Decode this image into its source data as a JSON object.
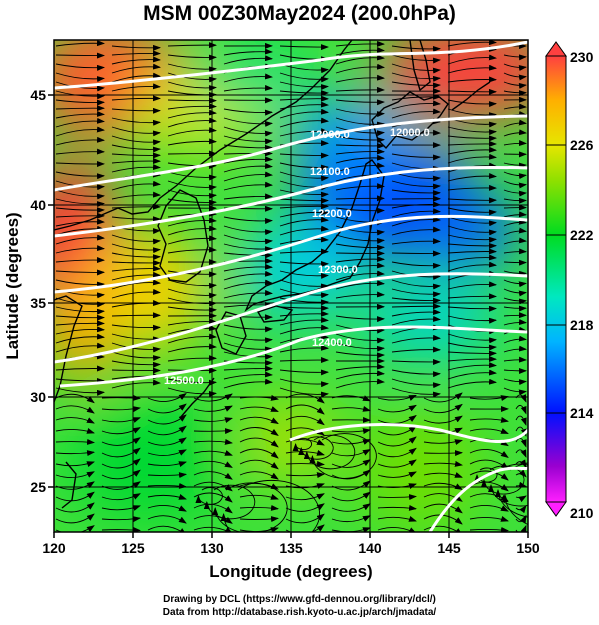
{
  "title": "MSM 00Z30May2024 (200.0hPa)",
  "axes": {
    "xlabel": "Longitude (degrees)",
    "ylabel": "Latitude  (degrees)",
    "xticks": [
      "120",
      "125",
      "130",
      "135",
      "140",
      "145",
      "150"
    ],
    "yticks": [
      "25",
      "30",
      "35",
      "40",
      "45"
    ]
  },
  "map": {
    "xlim": [
      120,
      150
    ],
    "ylim": [
      22.4,
      47.6
    ],
    "shaded_variable": "temperature",
    "contour_labels": [
      {
        "text": "12000.0",
        "lon": 140.5,
        "lat": 45.5
      },
      {
        "text": "12000.0",
        "lon": 136.5,
        "lat": 43.3
      },
      {
        "text": "12100.0",
        "lon": 136.8,
        "lat": 41.5
      },
      {
        "text": "12200.0",
        "lon": 137.0,
        "lat": 39.1
      },
      {
        "text": "12300.0",
        "lon": 137.6,
        "lat": 36.6
      },
      {
        "text": "12400.0",
        "lon": 135.0,
        "lat": 32.2
      },
      {
        "text": "12500.0",
        "lon": 127.6,
        "lat": 30.6
      }
    ]
  },
  "colorbar": {
    "min": 210,
    "max": 230,
    "tick_labels": [
      "230",
      "226",
      "222",
      "218",
      "214",
      "210"
    ],
    "colors": [
      "#ff1fff",
      "#8000c8",
      "#0010ff",
      "#00b4ff",
      "#00e8c0",
      "#00dc20",
      "#8ee000",
      "#e6e600",
      "#ffb000",
      "#ff4040"
    ]
  },
  "footer": {
    "line1": "Drawing by DCL (https://www.gfd-dennou.org/library/dcl/)",
    "line2": "Data from http://database.rish.kyoto-u.ac.jp/arch/jmadata/"
  }
}
